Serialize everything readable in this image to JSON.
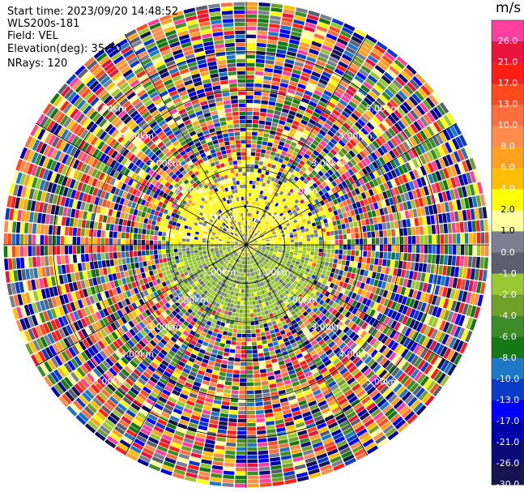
{
  "header": {
    "start_time": "Start time: 2023/09/20 14:48:52",
    "instrument": "WLS200s-181",
    "field": "Field: VEL",
    "elevation": "Elevation(deg): 35.30",
    "nrays": "NRays: 120"
  },
  "colorbar": {
    "unit": "m/s",
    "ticks": [
      "26.0",
      "21.0",
      "17.0",
      "13.0",
      "10.0",
      "8.0",
      "6.0",
      "4.0",
      "2.0",
      "1.0",
      "0.0",
      "-1.0",
      "-2.0",
      "-4.0",
      "-6.0",
      "-8.0",
      "-10.0",
      "-13.0",
      "-17.0",
      "-21.0",
      "-26.0",
      "-30.0"
    ],
    "colors": [
      "#ff3fa0",
      "#e8143c",
      "#ff1e14",
      "#ff4a1e",
      "#ff6e3c",
      "#ff8c4a",
      "#ffa01e",
      "#ffbe00",
      "#ffff00",
      "#ffffa0",
      "#7a8090",
      "#5a606e",
      "#9ac832",
      "#70a028",
      "#3c8c28",
      "#147814",
      "#1e78c8",
      "#0a3cc8",
      "#0000ff",
      "#0000aa",
      "#0a0a78",
      "#141450"
    ]
  },
  "range_rings": {
    "labels": [
      "1.00km",
      "2.00km",
      "3.00km",
      "4.00km",
      "5.00km"
    ]
  },
  "chart_data": {
    "type": "heatmap",
    "title": "",
    "field": "VEL",
    "units": "m/s",
    "elevation_deg": 35.3,
    "n_rays": 120,
    "vmin": -30.0,
    "vmax": 26.0,
    "max_range_km": 6.3,
    "range_ring_km": [
      1,
      2,
      3,
      4,
      5
    ],
    "regions": [
      {
        "description": "inner ring disc",
        "range_km": [
          0,
          0.3
        ],
        "dominant_velocity_ms": 1.0
      },
      {
        "description": "near-field north half",
        "range_km": [
          0.3,
          2.3
        ],
        "dominant_velocity_ms": 3.0
      },
      {
        "description": "near-field south half",
        "range_km": [
          0.3,
          2.3
        ],
        "dominant_velocity_ms": -2.0
      },
      {
        "description": "near-field gaps",
        "range_km": [
          0.3,
          2.3
        ],
        "dominant_velocity_ms": 0.0
      },
      {
        "description": "far field noise",
        "range_km": [
          2.3,
          6.3
        ],
        "dominant_velocity_ms": null
      }
    ]
  }
}
